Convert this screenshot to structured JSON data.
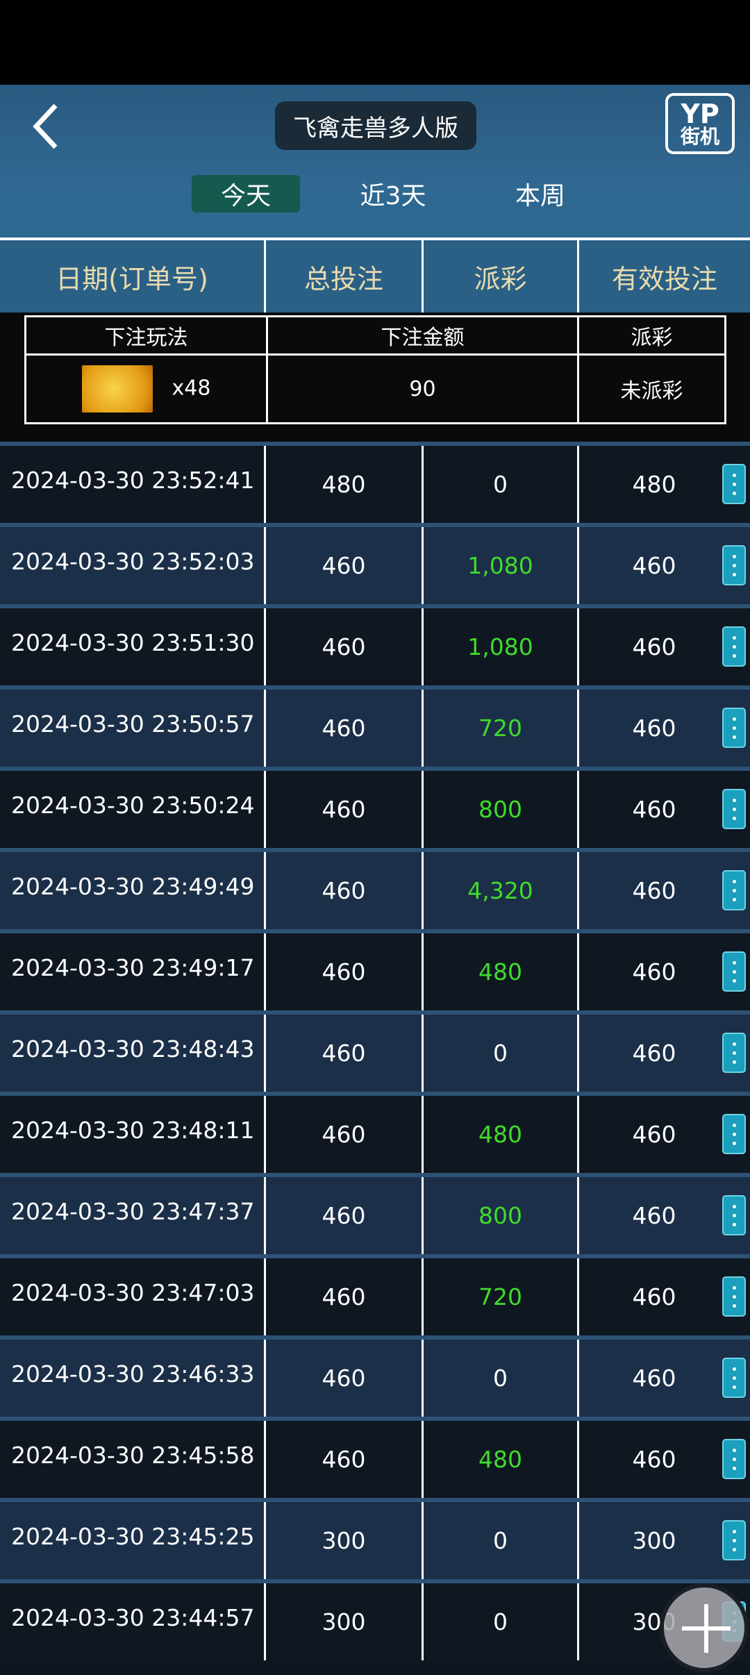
{
  "header": {
    "title": "飞禽走兽多人版",
    "logo_line1": "YP",
    "logo_line2": "街机"
  },
  "tabs": [
    {
      "label": "今天",
      "active": true
    },
    {
      "label": "近3天"
    },
    {
      "label": "本周"
    }
  ],
  "columns": [
    "日期(订单号)",
    "总投注",
    "派彩",
    "有效投注"
  ],
  "detail": {
    "headers": [
      "下注玩法",
      "下注金额",
      "派彩"
    ],
    "icon": "golden-shark-icon",
    "multiplier": "x48",
    "amount": "90",
    "payout": "未派彩"
  },
  "colors": {
    "win": "#3fdc2a",
    "active_tab": "#145a4e",
    "menu": "#1aa0bc"
  },
  "rows": [
    {
      "date": "2024-03-30 23:52:41",
      "bet": "480",
      "payout": "0",
      "valid": "480"
    },
    {
      "date": "2024-03-30 23:52:03",
      "bet": "460",
      "payout": "1,080",
      "valid": "460"
    },
    {
      "date": "2024-03-30 23:51:30",
      "bet": "460",
      "payout": "1,080",
      "valid": "460"
    },
    {
      "date": "2024-03-30 23:50:57",
      "bet": "460",
      "payout": "720",
      "valid": "460"
    },
    {
      "date": "2024-03-30 23:50:24",
      "bet": "460",
      "payout": "800",
      "valid": "460"
    },
    {
      "date": "2024-03-30 23:49:49",
      "bet": "460",
      "payout": "4,320",
      "valid": "460"
    },
    {
      "date": "2024-03-30 23:49:17",
      "bet": "460",
      "payout": "480",
      "valid": "460"
    },
    {
      "date": "2024-03-30 23:48:43",
      "bet": "460",
      "payout": "0",
      "valid": "460"
    },
    {
      "date": "2024-03-30 23:48:11",
      "bet": "460",
      "payout": "480",
      "valid": "460"
    },
    {
      "date": "2024-03-30 23:47:37",
      "bet": "460",
      "payout": "800",
      "valid": "460"
    },
    {
      "date": "2024-03-30 23:47:03",
      "bet": "460",
      "payout": "720",
      "valid": "460"
    },
    {
      "date": "2024-03-30 23:46:33",
      "bet": "460",
      "payout": "0",
      "valid": "460"
    },
    {
      "date": "2024-03-30 23:45:58",
      "bet": "460",
      "payout": "480",
      "valid": "460"
    },
    {
      "date": "2024-03-30 23:45:25",
      "bet": "300",
      "payout": "0",
      "valid": "300"
    },
    {
      "date": "2024-03-30 23:44:57",
      "bet": "300",
      "payout": "0",
      "valid": "300"
    }
  ]
}
